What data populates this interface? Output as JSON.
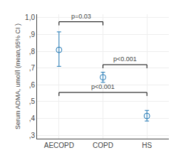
{
  "chart_data": {
    "type": "scatter",
    "categories": [
      "AECOPD",
      "COPD",
      "HS"
    ],
    "values": [
      0.808,
      0.645,
      0.415
    ],
    "ci_low": [
      0.71,
      0.615,
      0.385
    ],
    "ci_high": [
      0.915,
      0.675,
      0.448
    ],
    "marker": "circle-open",
    "ylabel": "Serum ADMA, umol/l (mean,95% CI )",
    "ylim": [
      0.28,
      1.02
    ],
    "yticks": [
      {
        "value": 0.3,
        "label": ",3"
      },
      {
        "value": 0.4,
        "label": ",4"
      },
      {
        "value": 0.5,
        "label": ",5"
      },
      {
        "value": 0.6,
        "label": ",6"
      },
      {
        "value": 0.7,
        "label": ",7"
      },
      {
        "value": 0.8,
        "label": ",8"
      },
      {
        "value": 0.9,
        "label": ",9"
      },
      {
        "value": 1.0,
        "label": "1,0"
      }
    ],
    "significance": [
      {
        "from": "AECOPD",
        "to": "COPD",
        "y": 0.975,
        "label": "p=0.03"
      },
      {
        "from": "COPD",
        "to": "HS",
        "y": 0.72,
        "label": "p<0.001"
      },
      {
        "from": "AECOPD",
        "to": "HS",
        "y": 0.555,
        "label": "p<0.001"
      }
    ]
  }
}
